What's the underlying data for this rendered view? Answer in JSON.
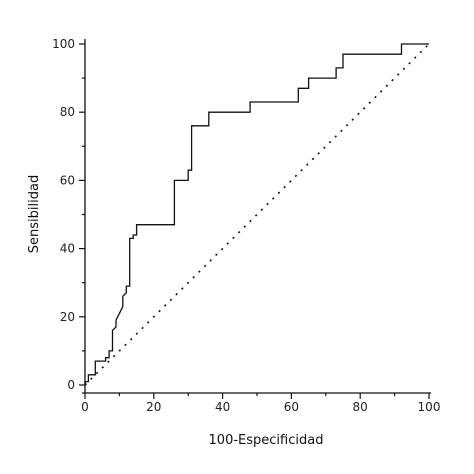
{
  "chart_data": {
    "type": "line",
    "title": "",
    "xlabel": "100-Especificidad",
    "ylabel": "Sensibilidad",
    "xlim": [
      0,
      100
    ],
    "ylim": [
      0,
      100
    ],
    "xticks": [
      0,
      20,
      40,
      60,
      80,
      100
    ],
    "yticks": [
      0,
      20,
      40,
      60,
      80,
      100
    ],
    "grid": false,
    "legend": "none",
    "colors": {
      "curve": "#111111",
      "reference": "#111111",
      "axis": "#111111"
    },
    "series": [
      {
        "style": "solid-step",
        "x": [
          0,
          0,
          1,
          1,
          3,
          3,
          6,
          6,
          7,
          7,
          8,
          8,
          9,
          9,
          10,
          11,
          11,
          12,
          12,
          13,
          13,
          14,
          14,
          15,
          15,
          26,
          26,
          30,
          30,
          31,
          31,
          36,
          36,
          48,
          48,
          62,
          62,
          65,
          65,
          73,
          73,
          75,
          75,
          92,
          92,
          100
        ],
        "y": [
          0,
          1,
          1,
          3,
          3,
          7,
          7,
          8,
          8,
          10,
          10,
          16,
          17,
          19,
          21,
          23,
          26,
          27,
          29,
          29,
          43,
          43,
          44,
          44,
          47,
          47,
          60,
          60,
          63,
          63,
          76,
          76,
          80,
          80,
          83,
          83,
          87,
          87,
          90,
          90,
          93,
          93,
          97,
          97,
          100,
          100
        ]
      },
      {
        "style": "dotted-diagonal",
        "x": [
          0,
          100
        ],
        "y": [
          0,
          100
        ]
      }
    ]
  }
}
